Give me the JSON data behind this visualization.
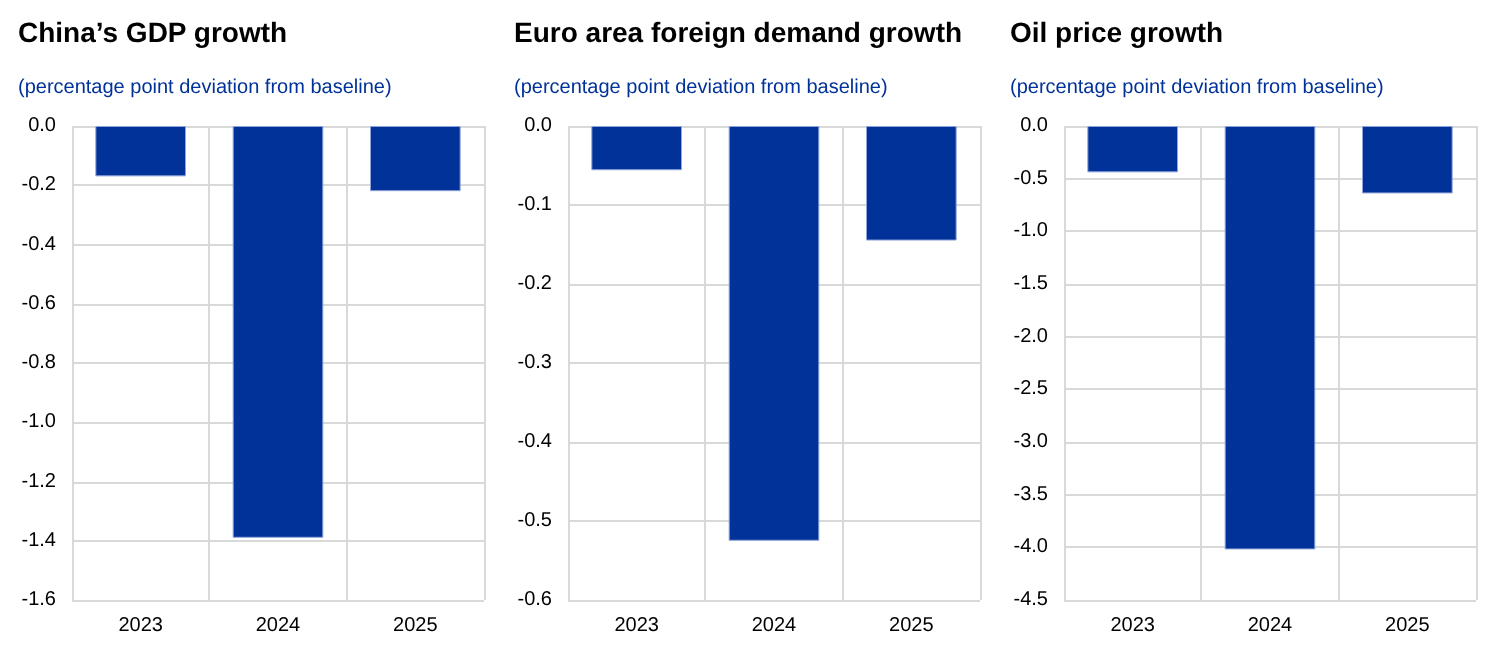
{
  "chart_data": [
    {
      "type": "bar",
      "title": "China’s GDP growth",
      "subtitle": "(percentage point deviation from baseline)",
      "categories": [
        "2023",
        "2024",
        "2025"
      ],
      "values": [
        -0.17,
        -1.39,
        -0.22
      ],
      "color": "#003299",
      "ylim": [
        -1.6,
        0
      ],
      "yticks": [
        {
          "value": 0,
          "label": "0.0"
        },
        -0.2,
        -0.4,
        -0.6,
        -0.8,
        {
          "value": -1,
          "label": "-1.0"
        },
        -1.2,
        -1.4,
        -1.6
      ],
      "grid": true
    },
    {
      "type": "bar",
      "title": "Euro area foreign demand growth",
      "subtitle": "(percentage point deviation from baseline)",
      "categories": [
        "2023",
        "2024",
        "2025"
      ],
      "values": [
        -0.056,
        -0.525,
        -0.145
      ],
      "color": "#003299",
      "ylim": [
        -0.6,
        0
      ],
      "yticks": [
        {
          "value": 0,
          "label": "0.0"
        },
        -0.1,
        -0.2,
        -0.3,
        -0.4,
        -0.5,
        -0.6
      ],
      "grid": true
    },
    {
      "type": "bar",
      "title": "Oil price growth",
      "subtitle": "(percentage point deviation from baseline)",
      "categories": [
        "2023",
        "2024",
        "2025"
      ],
      "values": [
        -0.44,
        -4.02,
        -0.64
      ],
      "color": "#003299",
      "ylim": [
        -4.5,
        0
      ],
      "yticks": [
        {
          "value": 0,
          "label": "0.0"
        },
        -0.5,
        {
          "value": -1,
          "label": "-1.0"
        },
        -1.5,
        {
          "value": -2,
          "label": "-2.0"
        },
        -2.5,
        {
          "value": -3,
          "label": "-3.0"
        },
        -3.5,
        {
          "value": -4,
          "label": "-4.0"
        },
        -4.5
      ],
      "grid": true
    }
  ]
}
